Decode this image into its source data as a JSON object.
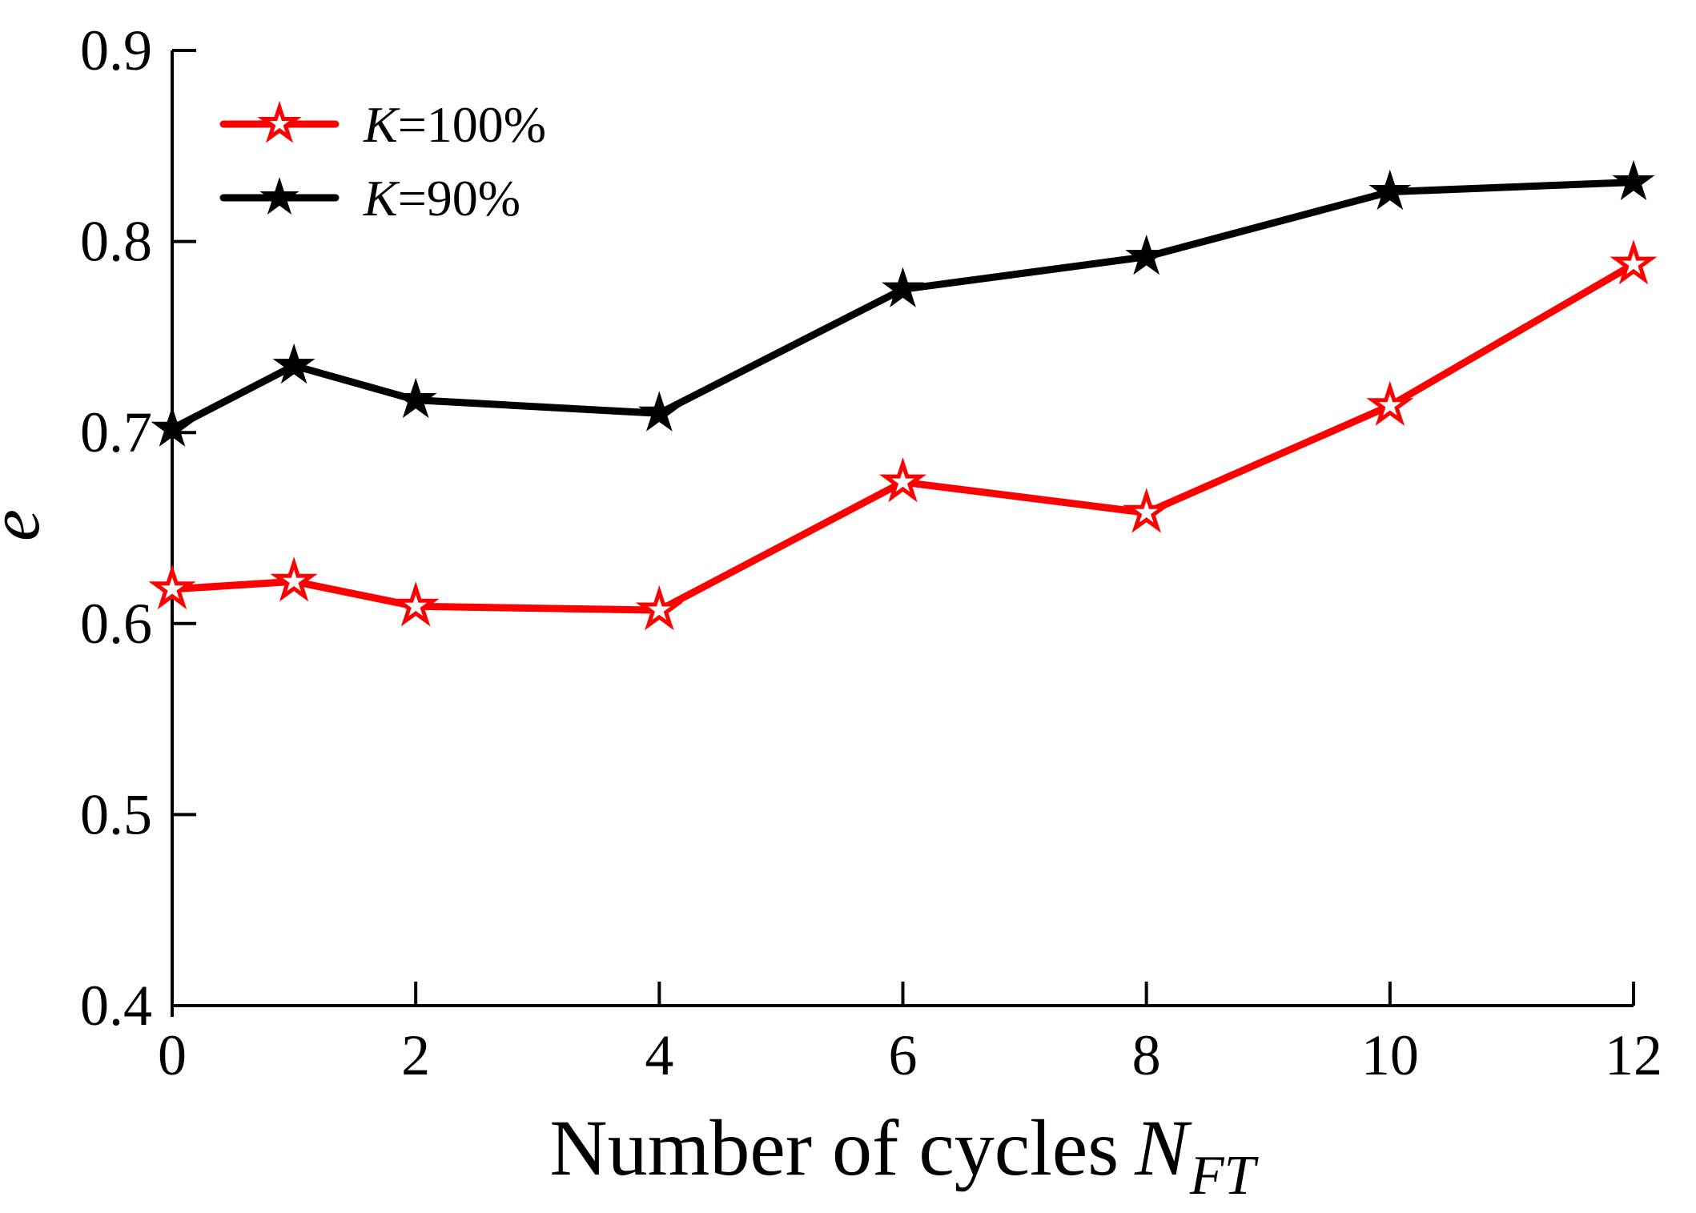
{
  "chart_data": {
    "type": "line",
    "title": "",
    "xlabel": {
      "text": "Number of cycles",
      "symbol": "N",
      "subscript": "FT"
    },
    "ylabel": "e",
    "x": [
      0,
      1,
      2,
      4,
      6,
      8,
      10,
      12
    ],
    "xlim": [
      0,
      12
    ],
    "ylim": [
      0.4,
      0.9
    ],
    "x_ticks": [
      0,
      2,
      4,
      6,
      8,
      10,
      12
    ],
    "y_ticks": [
      0.4,
      0.5,
      0.6,
      0.7,
      0.8,
      0.9
    ],
    "grid": false,
    "legend_position": "top-left-inside",
    "series": [
      {
        "name": "K=100%",
        "color": "#ff0000",
        "marker": "open-star",
        "values": [
          0.618,
          0.622,
          0.609,
          0.607,
          0.674,
          0.658,
          0.714,
          0.788
        ]
      },
      {
        "name": "K=90%",
        "color": "#000000",
        "marker": "filled-star",
        "values": [
          0.702,
          0.735,
          0.717,
          0.71,
          0.775,
          0.792,
          0.826,
          0.831
        ]
      }
    ]
  },
  "colors": {
    "axis": "#000000",
    "background": "#ffffff",
    "series_red": "#ff0000",
    "series_black": "#000000"
  }
}
